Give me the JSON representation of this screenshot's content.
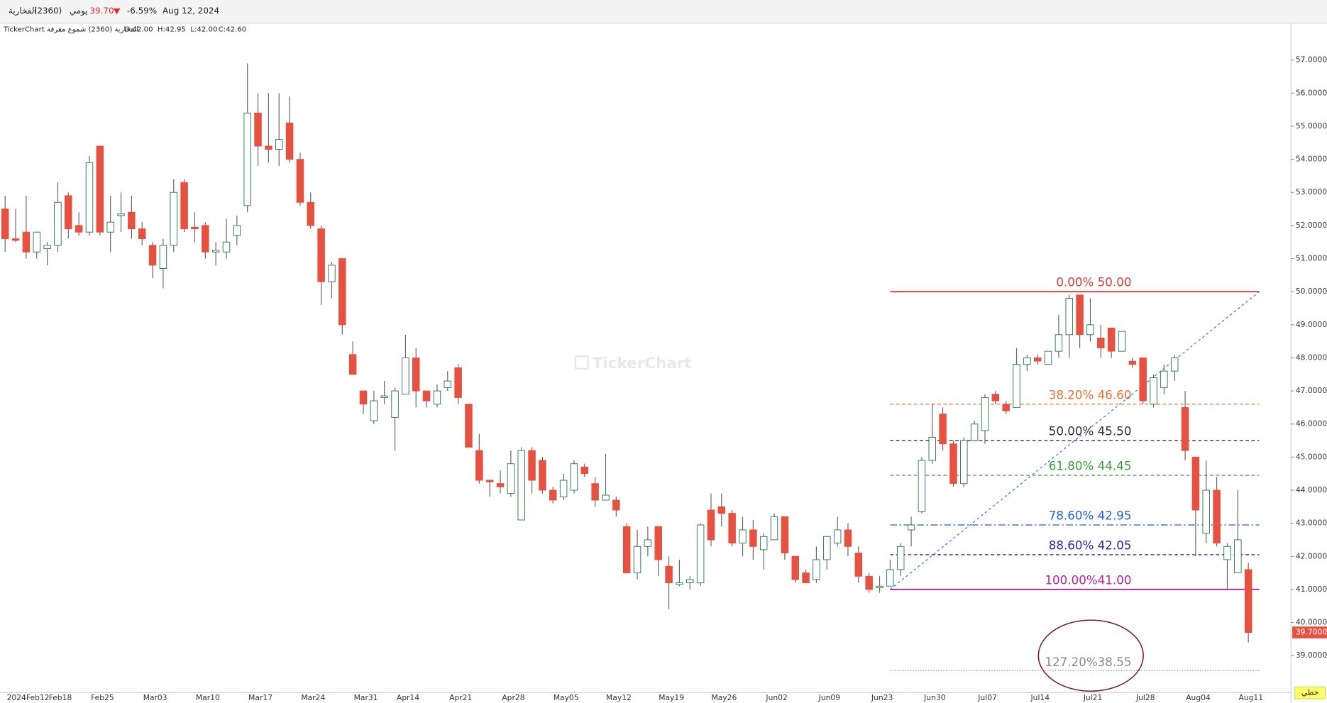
{
  "header": {
    "name": "الفخارية",
    "code": "(2360)",
    "period": "يومي",
    "price": "39.70",
    "change": "-6.59%",
    "date": "Aug 12, 2024",
    "legend_title": "TickerChart الفخارية (2360) شموع مقرفة",
    "ohlc": [
      "O:42.00",
      "H:42.95",
      "L:42.00",
      "C:42.60"
    ]
  },
  "watermark": "TickerChart",
  "chart_style": "خطي",
  "chart_data": {
    "type": "candlestick",
    "up_color": "#ffffff",
    "up_border": "#2f7d57",
    "down_color": "#e8503f",
    "wick_color": "#666666",
    "ylim": [
      37.9,
      58.1
    ],
    "yticks": [
      {
        "value": 39,
        "label": "39.0000"
      },
      {
        "value": 40,
        "label": "40.0000"
      },
      {
        "value": 41,
        "label": "41.0000"
      },
      {
        "value": 42,
        "label": "42.0000"
      },
      {
        "value": 43,
        "label": "43.0000"
      },
      {
        "value": 44,
        "label": "44.0000"
      },
      {
        "value": 45,
        "label": "45.0000"
      },
      {
        "value": 46,
        "label": "46.0000"
      },
      {
        "value": 47,
        "label": "47.0000"
      },
      {
        "value": 48,
        "label": "48.0000"
      },
      {
        "value": 49,
        "label": "49.0000"
      },
      {
        "value": 50,
        "label": "50.0000"
      },
      {
        "value": 51,
        "label": "51.0000"
      },
      {
        "value": 52,
        "label": "52.0000"
      },
      {
        "value": 53,
        "label": "53.0000"
      },
      {
        "value": 54,
        "label": "54.0000"
      },
      {
        "value": 55,
        "label": "55.0000"
      },
      {
        "value": 56,
        "label": "56.0000"
      },
      {
        "value": 57,
        "label": "57.0000"
      }
    ],
    "last_price": {
      "value": 39.7,
      "label": "39.7000",
      "color": "#e8503f"
    },
    "categories": [
      "2024Feb12",
      null,
      null,
      null,
      null,
      "Feb18",
      null,
      null,
      null,
      "Feb25",
      null,
      null,
      null,
      null,
      "Mar03",
      null,
      null,
      null,
      null,
      "Mar10",
      null,
      null,
      null,
      null,
      "Mar17",
      null,
      null,
      null,
      null,
      "Mar24",
      null,
      null,
      null,
      null,
      "Mar31",
      null,
      null,
      null,
      "Apr14",
      null,
      null,
      null,
      null,
      "Apr21",
      null,
      null,
      null,
      null,
      "Apr28",
      null,
      null,
      null,
      null,
      "May05",
      null,
      null,
      null,
      null,
      "May12",
      null,
      null,
      null,
      null,
      "May19",
      null,
      null,
      null,
      null,
      "May26",
      null,
      null,
      null,
      null,
      "Jun02",
      null,
      null,
      null,
      null,
      "Jun09",
      null,
      null,
      null,
      null,
      "Jun23",
      null,
      null,
      null,
      null,
      "Jun30",
      null,
      null,
      null,
      null,
      "Jul07",
      null,
      null,
      null,
      null,
      "Jul14",
      null,
      null,
      null,
      null,
      "Jul21",
      null,
      null,
      null,
      null,
      "Jul28",
      null,
      null,
      null,
      null,
      "Aug04",
      null,
      null,
      null,
      null,
      "Aug11"
    ],
    "open": [
      52.5,
      51.6,
      51.8,
      51.2,
      51.3,
      51.4,
      52.9,
      52.0,
      51.8,
      54.4,
      51.8,
      52.3,
      52.4,
      51.9,
      51.4,
      50.7,
      51.4,
      53.3,
      51.95,
      52.0,
      51.2,
      51.2,
      51.7,
      52.6,
      55.4,
      54.4,
      54.3,
      55.1,
      54.0,
      52.7,
      51.9,
      50.3,
      51.0,
      48.1,
      47.0,
      46.1,
      46.8,
      46.2,
      46.9,
      48.0,
      47.0,
      46.6,
      47.1,
      47.7,
      46.6,
      45.2,
      44.3,
      44.2,
      43.9,
      43.1,
      45.2,
      44.9,
      44.0,
      43.8,
      44.0,
      44.7,
      44.2,
      43.7,
      43.7,
      42.9,
      41.5,
      42.3,
      42.9,
      41.7,
      41.15,
      41.2,
      41.2,
      43.4,
      43.5,
      43.3,
      42.4,
      42.8,
      42.2,
      42.5,
      43.2,
      42.0,
      41.5,
      41.3,
      41.9,
      42.4,
      42.8,
      42.1,
      41.4,
      41.05,
      41.1,
      41.6,
      42.8,
      43.35,
      44.9,
      46.3,
      45.4,
      44.2,
      45.5,
      45.8,
      46.9,
      46.6,
      46.5,
      47.8,
      48.0,
      47.8,
      48.2,
      48.7,
      49.9,
      48.7,
      48.6,
      48.9,
      48.2,
      47.9,
      48.0,
      46.6,
      47.1,
      47.6,
      46.5,
      45.0,
      42.7,
      44.0,
      41.9,
      41.5,
      41.6
    ],
    "high": [
      52.9,
      52.5,
      52.9,
      51.8,
      51.5,
      53.3,
      53.0,
      52.4,
      54.1,
      54.4,
      52.9,
      53.0,
      52.9,
      52.1,
      51.5,
      51.6,
      53.4,
      53.4,
      52.4,
      52.1,
      51.5,
      52.2,
      52.3,
      56.9,
      56.0,
      56.0,
      56.0,
      55.9,
      54.2,
      53.0,
      52.0,
      50.9,
      51.0,
      48.5,
      47.0,
      47.0,
      47.3,
      47.1,
      48.7,
      48.3,
      47.0,
      47.2,
      47.6,
      47.8,
      46.6,
      45.7,
      44.3,
      44.6,
      45.2,
      45.3,
      45.3,
      45.0,
      44.1,
      44.5,
      44.9,
      44.8,
      44.4,
      45.1,
      43.8,
      43.0,
      42.8,
      42.9,
      42.9,
      42.0,
      41.9,
      41.4,
      43.0,
      43.9,
      43.9,
      43.4,
      43.2,
      43.1,
      42.7,
      43.3,
      43.2,
      42.0,
      41.6,
      42.3,
      42.6,
      43.2,
      43.0,
      42.3,
      41.5,
      41.4,
      41.9,
      42.4,
      43.2,
      45.0,
      46.6,
      46.5,
      45.5,
      45.6,
      46.1,
      46.9,
      47.0,
      46.7,
      48.3,
      48.1,
      48.1,
      48.2,
      49.3,
      49.9,
      49.9,
      49.8,
      49.0,
      48.9,
      48.8,
      48.0,
      48.0,
      47.5,
      47.8,
      48.1,
      47.0,
      45.0,
      44.9,
      44.4,
      42.4,
      44.0,
      41.8
    ],
    "low": [
      51.2,
      51.5,
      51.0,
      51.0,
      50.8,
      51.2,
      51.6,
      51.7,
      51.7,
      51.7,
      51.2,
      51.8,
      51.6,
      51.4,
      50.4,
      50.1,
      51.2,
      51.8,
      51.5,
      51.0,
      50.8,
      51.0,
      51.4,
      52.4,
      53.8,
      53.9,
      53.8,
      53.9,
      52.6,
      51.9,
      49.6,
      49.8,
      48.7,
      47.5,
      46.3,
      46.0,
      46.6,
      45.2,
      46.9,
      46.5,
      46.5,
      46.5,
      47.0,
      46.6,
      45.3,
      44.2,
      43.8,
      43.9,
      43.8,
      43.1,
      43.9,
      43.9,
      43.6,
      43.7,
      43.9,
      44.4,
      43.5,
      43.7,
      43.2,
      41.5,
      41.3,
      42.0,
      41.4,
      40.4,
      41.1,
      41.0,
      41.1,
      42.3,
      42.9,
      42.3,
      42.0,
      41.9,
      41.6,
      42.5,
      41.9,
      41.2,
      41.2,
      41.2,
      41.6,
      42.3,
      42.0,
      41.2,
      40.9,
      40.9,
      41.1,
      41.4,
      42.3,
      43.3,
      44.8,
      45.2,
      44.1,
      44.1,
      45.5,
      45.4,
      46.6,
      46.3,
      46.5,
      47.6,
      47.8,
      47.8,
      48.0,
      48.0,
      48.3,
      48.5,
      48.0,
      48.0,
      48.2,
      47.7,
      46.6,
      46.5,
      46.9,
      47.3,
      44.9,
      42.0,
      42.4,
      42.3,
      41.0,
      41.5,
      39.4
    ],
    "close": [
      51.6,
      51.55,
      51.2,
      51.8,
      51.4,
      52.7,
      51.9,
      51.8,
      53.9,
      51.8,
      52.1,
      52.35,
      51.9,
      51.6,
      50.8,
      51.4,
      53.0,
      51.9,
      51.9,
      51.2,
      51.25,
      51.5,
      52.0,
      55.4,
      54.4,
      54.3,
      54.6,
      54.0,
      52.7,
      52.0,
      50.3,
      50.8,
      49.0,
      47.5,
      46.6,
      46.7,
      46.85,
      47.0,
      48.0,
      47.0,
      46.7,
      47.0,
      47.3,
      46.8,
      45.3,
      44.3,
      44.25,
      44.1,
      44.8,
      45.2,
      44.3,
      44.0,
      43.7,
      44.3,
      44.8,
      44.5,
      43.7,
      43.85,
      43.4,
      41.5,
      42.3,
      42.5,
      41.9,
      41.2,
      41.2,
      41.3,
      42.95,
      42.5,
      43.3,
      42.4,
      42.8,
      42.3,
      42.6,
      43.2,
      42.1,
      41.3,
      41.2,
      41.9,
      42.6,
      42.8,
      42.3,
      41.4,
      41.0,
      41.1,
      41.6,
      42.3,
      42.95,
      44.9,
      45.6,
      45.4,
      44.2,
      45.5,
      46.0,
      46.8,
      46.7,
      46.4,
      47.8,
      48.0,
      47.9,
      48.2,
      48.7,
      49.8,
      48.7,
      49.0,
      48.3,
      48.2,
      48.8,
      47.8,
      46.7,
      47.4,
      47.6,
      48.0,
      45.2,
      43.4,
      44.0,
      42.4,
      42.3,
      42.5,
      39.7
    ],
    "fib_levels": [
      {
        "label": "0.00%  50.00",
        "value": 50,
        "color": "#e53935",
        "style": "solid"
      },
      {
        "label": "38.20% 46.60",
        "value": 46.6,
        "color": "#f07030",
        "style": "dashed"
      },
      {
        "label": "50.00% 45.50",
        "value": 45.5,
        "color": "#333333",
        "style": "dashed"
      },
      {
        "label": "61.80% 44.45",
        "value": 44.45,
        "color": "#3a9a3a",
        "style": "dashed"
      },
      {
        "label": "78.60% 42.95",
        "value": 42.95,
        "color": "#1f5fe0",
        "style": "dashdot"
      },
      {
        "label": "88.60% 42.05",
        "value": 42.05,
        "color": "#2c2ca0",
        "style": "dashed"
      },
      {
        "label": "100.00%41.00",
        "value": 41,
        "color": "#c020a0",
        "style": "solid"
      },
      {
        "label": "127.20%38.55",
        "value": 38.55,
        "color": "#888888",
        "style": "dotted"
      }
    ],
    "trend_color": "#3a6fe0"
  }
}
